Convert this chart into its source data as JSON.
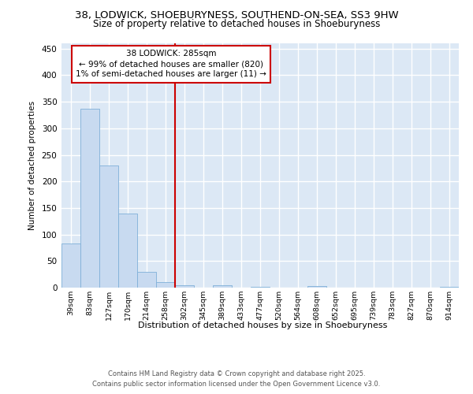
{
  "title1": "38, LODWICK, SHOEBURYNESS, SOUTHEND-ON-SEA, SS3 9HW",
  "title2": "Size of property relative to detached houses in Shoeburyness",
  "xlabel": "Distribution of detached houses by size in Shoeburyness",
  "ylabel": "Number of detached properties",
  "categories": [
    "39sqm",
    "83sqm",
    "127sqm",
    "170sqm",
    "214sqm",
    "258sqm",
    "302sqm",
    "345sqm",
    "389sqm",
    "433sqm",
    "477sqm",
    "520sqm",
    "564sqm",
    "608sqm",
    "652sqm",
    "695sqm",
    "739sqm",
    "783sqm",
    "827sqm",
    "870sqm",
    "914sqm"
  ],
  "values": [
    83,
    337,
    230,
    139,
    30,
    11,
    4,
    0,
    4,
    0,
    1,
    0,
    0,
    3,
    0,
    0,
    0,
    0,
    0,
    0,
    1
  ],
  "bar_color": "#c8daf0",
  "bar_edge_color": "#7fb0d8",
  "vline_x": 5.5,
  "vline_label": "38 LODWICK: 285sqm",
  "annotation_line1": "← 99% of detached houses are smaller (820)",
  "annotation_line2": "1% of semi-detached houses are larger (11) →",
  "annotation_box_color": "#ffffff",
  "annotation_box_edge": "#cc0000",
  "vline_color": "#cc0000",
  "footnote1": "Contains HM Land Registry data © Crown copyright and database right 2025.",
  "footnote2": "Contains public sector information licensed under the Open Government Licence v3.0.",
  "bg_color": "#ffffff",
  "plot_bg_color": "#dce8f5",
  "grid_color": "#ffffff",
  "yticks": [
    0,
    50,
    100,
    150,
    200,
    250,
    300,
    350,
    400,
    450
  ],
  "ylim": [
    0,
    460
  ]
}
